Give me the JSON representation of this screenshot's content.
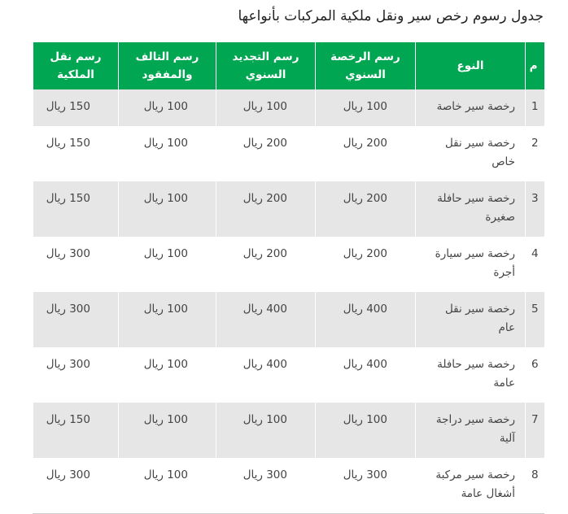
{
  "title": "جدول رسوم رخص سير ونقل ملكية المركبات بأنواعها",
  "table": {
    "headers": [
      "م",
      "النوع",
      "رسم الرخصة السنوي",
      "رسم التجديد السنوي",
      "رسم التالف والمفقود",
      "رسم نقل الملكية"
    ],
    "rows": [
      [
        "1",
        "رخصة سير خاصة",
        "100 ريال",
        "100 ريال",
        "100 ريال",
        "150 ريال"
      ],
      [
        "2",
        "رخصة سير نقل خاص",
        "200 ريال",
        "200 ريال",
        "100 ريال",
        "150 ريال"
      ],
      [
        "3",
        "رخصة سير حافلة صغيرة",
        "200 ريال",
        "200 ريال",
        "100 ريال",
        "150 ريال"
      ],
      [
        "4",
        "رخصة سير سيارة أجرة",
        "200 ريال",
        "200 ريال",
        "100 ريال",
        "300 ريال"
      ],
      [
        "5",
        "رخصة سير نقل عام",
        "400 ريال",
        "400 ريال",
        "100 ريال",
        "300 ريال"
      ],
      [
        "6",
        "رخصة سير حافلة عامة",
        "400 ريال",
        "400 ريال",
        "100 ريال",
        "300 ريال"
      ],
      [
        "7",
        "رخصة سير دراجة آلية",
        "100 ريال",
        "100 ريال",
        "100 ريال",
        "150 ريال"
      ],
      [
        "8",
        "رخصة سير مركبة أشغال عامة",
        "300 ريال",
        "300 ريال",
        "100 ريال",
        "300 ريال"
      ]
    ]
  }
}
